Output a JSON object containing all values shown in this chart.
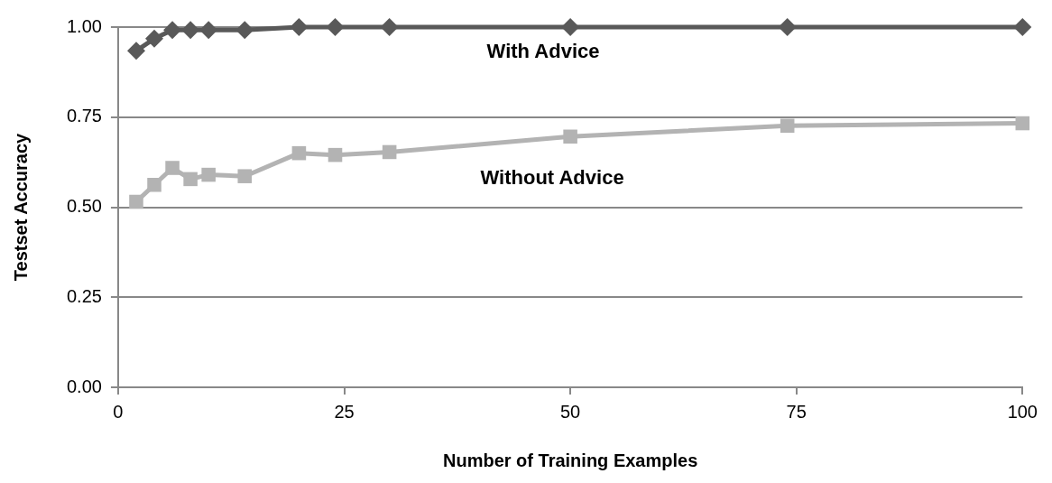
{
  "chart_data": {
    "type": "line",
    "xlabel": "Number of Training Examples",
    "ylabel": "Testset Accuracy",
    "xlim": [
      0,
      100
    ],
    "xticks": [
      0,
      25,
      50,
      75,
      100
    ],
    "ylim": [
      0,
      1
    ],
    "yticks": [
      {
        "value": 0,
        "label": "0.00"
      },
      {
        "value": 0.25,
        "label": "0.25"
      },
      {
        "value": 0.5,
        "label": "0.50"
      },
      {
        "value": 0.75,
        "label": "0.75"
      },
      {
        "value": 1,
        "label": "1.00"
      }
    ],
    "grid": "y",
    "legend": false,
    "series": [
      {
        "name": "With Advice",
        "color": "#595959",
        "marker": "diamond",
        "x": [
          2,
          4,
          6,
          8,
          10,
          14,
          20,
          24,
          30,
          50,
          74,
          100
        ],
        "values": [
          0.934,
          0.968,
          0.992,
          0.992,
          0.992,
          0.992,
          1.0,
          1.0,
          1.0,
          1.0,
          1.0,
          1.0
        ]
      },
      {
        "name": "Without Advice",
        "color": "#b3b3b3",
        "marker": "square",
        "x": [
          2,
          4,
          6,
          8,
          10,
          14,
          20,
          24,
          30,
          50,
          74,
          100
        ],
        "values": [
          0.515,
          0.562,
          0.609,
          0.578,
          0.59,
          0.586,
          0.65,
          0.645,
          0.653,
          0.696,
          0.726,
          0.733
        ]
      }
    ]
  }
}
